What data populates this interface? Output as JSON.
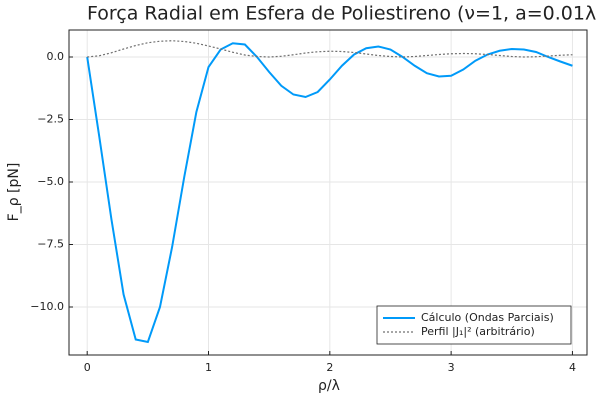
{
  "chart_data": {
    "type": "line",
    "title": "Força Radial em Esfera de Poliestireno (ν=1, a=0.01λ",
    "x_label": "ρ/λ",
    "y_label": "F_ρ [pN]",
    "x": [
      0,
      0.1,
      0.2,
      0.3,
      0.4,
      0.5,
      0.6,
      0.7,
      0.8,
      0.9,
      1.0,
      1.1,
      1.2,
      1.3,
      1.4,
      1.5,
      1.6,
      1.7,
      1.8,
      1.9,
      2.0,
      2.1,
      2.2,
      2.3,
      2.4,
      2.5,
      2.6,
      2.7,
      2.8,
      2.9,
      3.0,
      3.1,
      3.2,
      3.3,
      3.4,
      3.5,
      3.6,
      3.7,
      3.8,
      3.9,
      4.0
    ],
    "series": [
      {
        "name": "Cálculo (Ondas Parciais)",
        "color": "#009af9",
        "style": "solid",
        "values": [
          0,
          -3.2,
          -6.5,
          -9.5,
          -11.3,
          -11.4,
          -10.0,
          -7.6,
          -4.8,
          -2.2,
          -0.4,
          0.3,
          0.55,
          0.5,
          0.0,
          -0.6,
          -1.15,
          -1.5,
          -1.6,
          -1.4,
          -0.9,
          -0.35,
          0.1,
          0.35,
          0.42,
          0.3,
          0.0,
          -0.35,
          -0.65,
          -0.78,
          -0.75,
          -0.5,
          -0.15,
          0.1,
          0.25,
          0.32,
          0.3,
          0.2,
          0.0,
          -0.18,
          -0.35
        ]
      },
      {
        "name": "Perfil |J₁|² (arbitrário)",
        "color": "#707070",
        "style": "dotted",
        "values": [
          0,
          0.05,
          0.17,
          0.32,
          0.46,
          0.57,
          0.63,
          0.65,
          0.62,
          0.55,
          0.44,
          0.32,
          0.19,
          0.08,
          0.02,
          0.0,
          0.03,
          0.09,
          0.16,
          0.21,
          0.23,
          0.22,
          0.18,
          0.12,
          0.06,
          0.02,
          0.0,
          0.02,
          0.06,
          0.1,
          0.13,
          0.14,
          0.13,
          0.1,
          0.06,
          0.02,
          0.0,
          0.01,
          0.04,
          0.07,
          0.09
        ]
      }
    ],
    "xlim": [
      -0.15,
      4.12
    ],
    "xticks": [
      0,
      1,
      2,
      3,
      4
    ],
    "ylim": [
      -11.92,
      1.08
    ],
    "yticks": [
      {
        "value": 0,
        "label": "0.0"
      },
      {
        "value": -2.5,
        "label": "−2.5"
      },
      {
        "value": -5,
        "label": "−5.0"
      },
      {
        "value": -7.5,
        "label": "−7.5"
      },
      {
        "value": -10,
        "label": "−10.0"
      }
    ],
    "grid": true,
    "legend": "bottom-right"
  }
}
